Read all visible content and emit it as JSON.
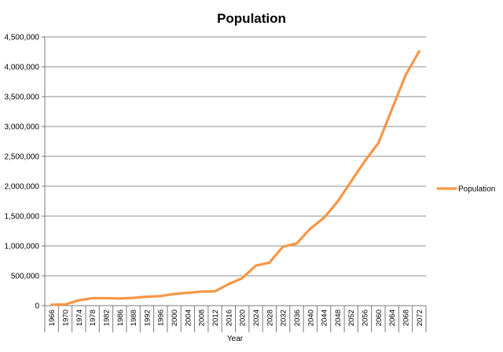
{
  "chart_data": {
    "type": "line",
    "title": "Population",
    "xlabel": "Year",
    "ylabel": "",
    "ylim": [
      0,
      4500000
    ],
    "y_ticks": [
      0,
      500000,
      1000000,
      1500000,
      2000000,
      2500000,
      3000000,
      3500000,
      4000000,
      4500000
    ],
    "y_tick_labels": [
      "0",
      "500,000",
      "1,000,000",
      "1,500,000",
      "2,000,000",
      "2,500,000",
      "3,000,000",
      "3,500,000",
      "4,000,000",
      "4,500,000"
    ],
    "categories": [
      "1966",
      "1970",
      "1974",
      "1978",
      "1982",
      "1986",
      "1988",
      "1992",
      "1996",
      "2000",
      "2004",
      "2008",
      "2012",
      "2016",
      "2020",
      "2024",
      "2028",
      "2032",
      "2036",
      "2040",
      "2044",
      "2048",
      "2052",
      "2056",
      "2060",
      "2064",
      "2068",
      "2072"
    ],
    "grid": true,
    "legend_position": "right",
    "series": [
      {
        "name": "Population",
        "color": "#F79646",
        "values": [
          15000,
          20000,
          90000,
          125000,
          125000,
          120000,
          130000,
          150000,
          160000,
          195000,
          215000,
          235000,
          240000,
          360000,
          460000,
          670000,
          720000,
          990000,
          1040000,
          1290000,
          1470000,
          1740000,
          2080000,
          2420000,
          2720000,
          3290000,
          3860000,
          4260000
        ]
      }
    ]
  }
}
